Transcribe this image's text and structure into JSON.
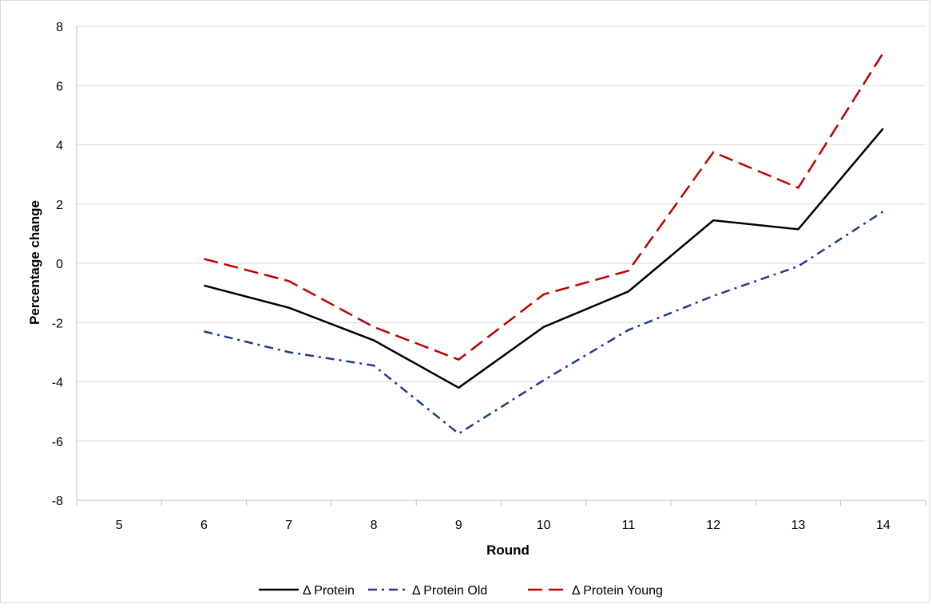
{
  "chart_data": {
    "type": "line",
    "title": "",
    "xlabel": "Round",
    "ylabel": "Percentage change",
    "categories": [
      "5",
      "6",
      "7",
      "8",
      "9",
      "10",
      "11",
      "12",
      "13",
      "14"
    ],
    "ylim": [
      -8,
      8
    ],
    "yticks": [
      -8,
      -6,
      -4,
      -2,
      0,
      2,
      4,
      6,
      8
    ],
    "grid": "horizontal",
    "legend_position": "bottom",
    "series": [
      {
        "name": "Δ Protein",
        "color": "#000000",
        "style": "solid",
        "values": [
          null,
          -0.75,
          -1.5,
          -2.6,
          -4.2,
          -2.15,
          -0.95,
          1.45,
          1.15,
          4.55
        ]
      },
      {
        "name": "Δ Protein Old",
        "color": "#1f3c88",
        "style": "dash-dot",
        "values": [
          null,
          -2.3,
          -3.0,
          -3.45,
          -5.75,
          -3.95,
          -2.25,
          -1.1,
          -0.1,
          1.75
        ]
      },
      {
        "name": "Δ Protein Young",
        "color": "#c00000",
        "style": "dashed",
        "values": [
          null,
          0.15,
          -0.6,
          -2.15,
          -3.25,
          -1.05,
          -0.25,
          3.75,
          2.55,
          7.1
        ]
      }
    ]
  }
}
